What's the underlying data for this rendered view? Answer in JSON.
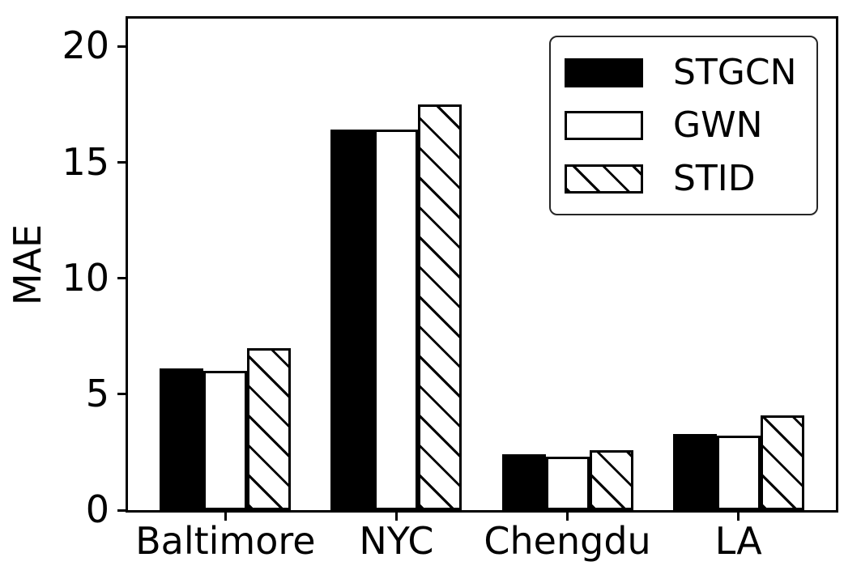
{
  "figure": {
    "background_color": "#ffffff",
    "text_color": "#000000",
    "bar_edge_color": "#000000"
  },
  "chart_data": {
    "type": "bar",
    "title": "",
    "xlabel": "",
    "ylabel": "MAE",
    "categories": [
      "Baltimore",
      "NYC",
      "Chengdu",
      "LA"
    ],
    "series": [
      {
        "name": "STGCN",
        "fill": "#000000",
        "hatch": "none",
        "values": [
          6.1,
          16.4,
          2.4,
          3.3
        ]
      },
      {
        "name": "GWN",
        "fill": "#ffffff",
        "hatch": "none",
        "values": [
          6.0,
          16.4,
          2.3,
          3.2
        ]
      },
      {
        "name": "STID",
        "fill": "#ffffff",
        "hatch": "diagonal",
        "values": [
          7.0,
          17.5,
          2.6,
          4.1
        ]
      }
    ],
    "yticks": [
      0,
      5,
      10,
      15,
      20
    ],
    "ylim": [
      0,
      21.2
    ],
    "grid": false,
    "legend_position": "upper right"
  }
}
